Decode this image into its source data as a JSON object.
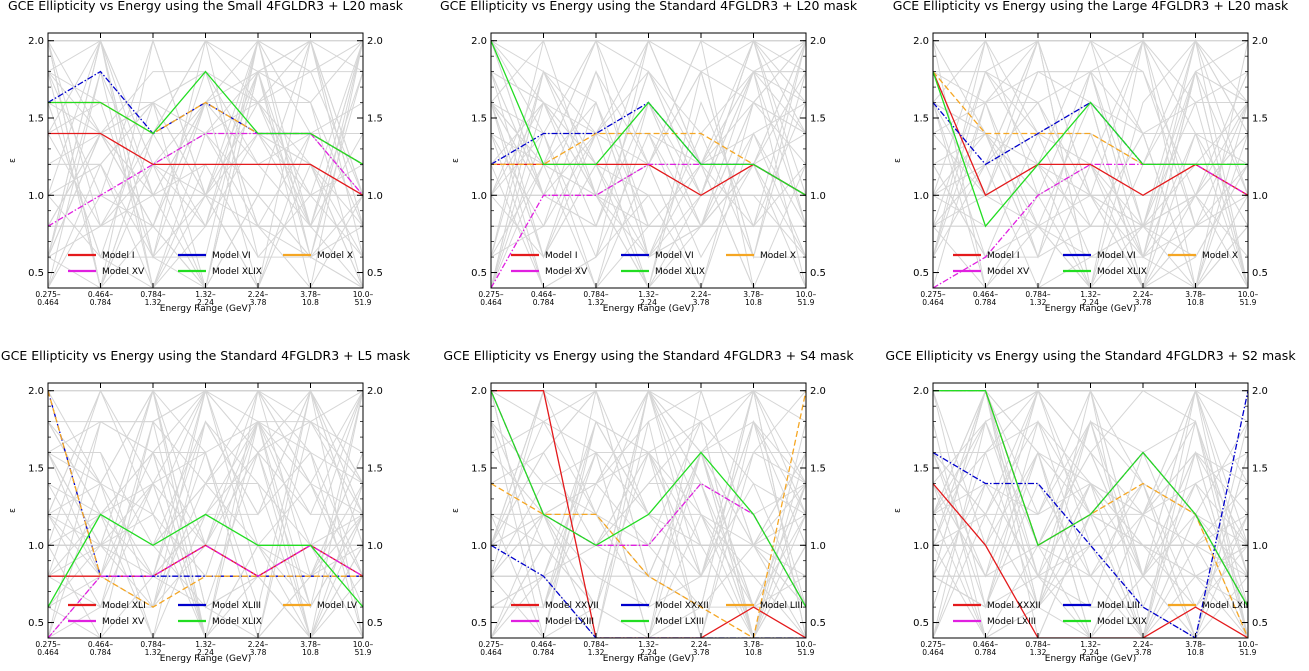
{
  "chart_data": [
    {
      "type": "line",
      "title": "GCE Ellipticity vs Energy using the Small 4FGLDR3 + L20 mask",
      "xlabel": "Energy Range (GeV)",
      "ylabel": "ε",
      "categories": [
        "0.275–0.464",
        "0.464–0.784",
        "0.784–1.32",
        "1.32–2.24",
        "2.24–3.78",
        "3.78–10.8",
        "10.0–51.9"
      ],
      "ylim": [
        0.4,
        2.05
      ],
      "yticks": [
        "0.5",
        "1.0",
        "1.5",
        "2.0"
      ],
      "legend_position": "lower-left",
      "background_lines": "many light gray model lines",
      "series": [
        {
          "name": "Model I",
          "color": "#e41a1c",
          "dash": "solid",
          "values": [
            1.4,
            1.4,
            1.2,
            1.2,
            1.2,
            1.2,
            1.0
          ]
        },
        {
          "name": "Model VI",
          "color": "#0000cc",
          "dash": "dashdot",
          "values": [
            1.6,
            1.8,
            1.4,
            1.6,
            1.4,
            1.4,
            1.2
          ]
        },
        {
          "name": "Model X",
          "color": "#f5a623",
          "dash": "dashed",
          "values": [
            1.6,
            1.6,
            1.4,
            1.6,
            1.4,
            1.4,
            1.2
          ]
        },
        {
          "name": "Model XV",
          "color": "#e020e0",
          "dash": "dashdot",
          "values": [
            0.8,
            1.0,
            1.2,
            1.4,
            1.4,
            1.4,
            1.0
          ]
        },
        {
          "name": "Model XLIX",
          "color": "#22dd22",
          "dash": "solid",
          "values": [
            1.6,
            1.6,
            1.4,
            1.8,
            1.4,
            1.4,
            1.2
          ]
        }
      ]
    },
    {
      "type": "line",
      "title": "GCE Ellipticity vs Energy using the Standard 4FGLDR3 + L20 mask",
      "xlabel": "Energy Range (GeV)",
      "ylabel": "ε",
      "categories": [
        "0.275–0.464",
        "0.464–0.784",
        "0.784–1.32",
        "1.32–2.24",
        "2.24–3.78",
        "3.78–10.8",
        "10.0–51.9"
      ],
      "ylim": [
        0.4,
        2.05
      ],
      "yticks": [
        "0.5",
        "1.0",
        "1.5",
        "2.0"
      ],
      "legend_position": "lower-left",
      "series": [
        {
          "name": "Model I",
          "color": "#e41a1c",
          "dash": "solid",
          "values": [
            1.2,
            1.2,
            1.2,
            1.2,
            1.0,
            1.2,
            1.0
          ]
        },
        {
          "name": "Model VI",
          "color": "#0000cc",
          "dash": "dashdot",
          "values": [
            1.2,
            1.4,
            1.4,
            1.6,
            1.2,
            1.2,
            1.0
          ]
        },
        {
          "name": "Model X",
          "color": "#f5a623",
          "dash": "dashed",
          "values": [
            1.2,
            1.2,
            1.4,
            1.4,
            1.4,
            1.2,
            1.0
          ]
        },
        {
          "name": "Model XV",
          "color": "#e020e0",
          "dash": "dashdot",
          "values": [
            0.4,
            1.0,
            1.0,
            1.2,
            1.2,
            1.2,
            1.0
          ]
        },
        {
          "name": "Model XLIX",
          "color": "#22dd22",
          "dash": "solid",
          "values": [
            2.0,
            1.2,
            1.2,
            1.6,
            1.2,
            1.2,
            1.0
          ]
        }
      ]
    },
    {
      "type": "line",
      "title": "GCE Ellipticity vs Energy using the Large 4FGLDR3 + L20 mask",
      "xlabel": "Energy Range (GeV)",
      "ylabel": "ε",
      "categories": [
        "0.275–0.464",
        "0.464–0.784",
        "0.784–1.32",
        "1.32–2.24",
        "2.24–3.78",
        "3.78–10.8",
        "10.0–51.9"
      ],
      "ylim": [
        0.4,
        2.05
      ],
      "yticks": [
        "0.5",
        "1.0",
        "1.5",
        "2.0"
      ],
      "legend_position": "lower-left",
      "series": [
        {
          "name": "Model I",
          "color": "#e41a1c",
          "dash": "solid",
          "values": [
            1.8,
            1.0,
            1.2,
            1.2,
            1.0,
            1.2,
            1.0
          ]
        },
        {
          "name": "Model VI",
          "color": "#0000cc",
          "dash": "dashdot",
          "values": [
            1.6,
            1.2,
            1.4,
            1.6,
            1.2,
            1.2,
            1.2
          ]
        },
        {
          "name": "Model X",
          "color": "#f5a623",
          "dash": "dashed",
          "values": [
            1.8,
            1.4,
            1.4,
            1.4,
            1.2,
            1.2,
            1.2
          ]
        },
        {
          "name": "Model XV",
          "color": "#e020e0",
          "dash": "dashdot",
          "values": [
            0.4,
            0.6,
            1.0,
            1.2,
            1.2,
            1.2,
            1.0
          ]
        },
        {
          "name": "Model XLIX",
          "color": "#22dd22",
          "dash": "solid",
          "values": [
            1.8,
            0.8,
            1.2,
            1.6,
            1.2,
            1.2,
            1.2
          ]
        }
      ]
    },
    {
      "type": "line",
      "title": "GCE Ellipticity vs Energy using the Standard 4FGLDR3 + L5 mask",
      "xlabel": "Energy Range (GeV)",
      "ylabel": "ε",
      "categories": [
        "0.275–0.464",
        "0.464–0.784",
        "0.784–1.32",
        "1.32–2.24",
        "2.24–3.78",
        "3.78–10.8",
        "10.0–51.9"
      ],
      "ylim": [
        0.4,
        2.05
      ],
      "yticks": [
        "0.5",
        "1.0",
        "1.5",
        "2.0"
      ],
      "legend_position": "lower-left",
      "series": [
        {
          "name": "Model XLI",
          "color": "#e41a1c",
          "dash": "solid",
          "values": [
            0.8,
            0.8,
            0.8,
            1.0,
            0.8,
            1.0,
            0.8
          ]
        },
        {
          "name": "Model XLIII",
          "color": "#0000cc",
          "dash": "dashdot",
          "values": [
            2.0,
            0.8,
            0.8,
            0.8,
            0.8,
            0.8,
            0.8
          ]
        },
        {
          "name": "Model LV",
          "color": "#f5a623",
          "dash": "dashed",
          "values": [
            2.0,
            0.8,
            0.6,
            0.8,
            0.8,
            0.8,
            0.8
          ]
        },
        {
          "name": "Model XV",
          "color": "#e020e0",
          "dash": "dashdot",
          "values": [
            0.4,
            0.8,
            0.8,
            1.0,
            0.8,
            1.0,
            0.8
          ]
        },
        {
          "name": "Model XLIX",
          "color": "#22dd22",
          "dash": "solid",
          "values": [
            0.6,
            1.2,
            1.0,
            1.2,
            1.0,
            1.0,
            0.6
          ]
        }
      ]
    },
    {
      "type": "line",
      "title": "GCE Ellipticity vs Energy using the Standard 4FGLDR3 + S4 mask",
      "xlabel": "Energy Range (GeV)",
      "ylabel": "ε",
      "categories": [
        "0.275–0.464",
        "0.464–0.784",
        "0.784–1.32",
        "1.32–2.24",
        "2.24–3.78",
        "3.78–10.8",
        "10.0–51.9"
      ],
      "ylim": [
        0.4,
        2.05
      ],
      "yticks": [
        "0.5",
        "1.0",
        "1.5",
        "2.0"
      ],
      "legend_position": "lower-left",
      "series": [
        {
          "name": "Model XXVII",
          "color": "#e41a1c",
          "dash": "solid",
          "values": [
            2.0,
            2.0,
            0.4,
            0.4,
            0.4,
            0.6,
            0.4
          ]
        },
        {
          "name": "Model XXXII",
          "color": "#0000cc",
          "dash": "dashdot",
          "values": [
            1.0,
            0.8,
            0.4,
            0.4,
            0.4,
            0.4,
            0.4
          ]
        },
        {
          "name": "Model LIII",
          "color": "#f5a623",
          "dash": "dashed",
          "values": [
            1.4,
            1.2,
            1.2,
            0.8,
            0.6,
            0.4,
            2.0
          ]
        },
        {
          "name": "Model LXIII",
          "color": "#e020e0",
          "dash": "dashdot",
          "values": [
            2.0,
            1.2,
            1.0,
            1.0,
            1.4,
            1.2,
            0.6
          ]
        },
        {
          "name": "Model LXIII",
          "color": "#22dd22",
          "dash": "solid",
          "values": [
            2.0,
            1.2,
            1.0,
            1.2,
            1.6,
            1.2,
            0.6
          ]
        }
      ]
    },
    {
      "type": "line",
      "title": "GCE Ellipticity vs Energy using the Standard 4FGLDR3 + S2 mask",
      "xlabel": "Energy Range (GeV)",
      "ylabel": "ε",
      "categories": [
        "0.275–0.464",
        "0.464–0.784",
        "0.784–1.32",
        "1.32–2.24",
        "2.24–3.78",
        "3.78–10.8",
        "10.0–51.9"
      ],
      "ylim": [
        0.4,
        2.05
      ],
      "yticks": [
        "0.5",
        "1.0",
        "1.5",
        "2.0"
      ],
      "legend_position": "lower-left",
      "series": [
        {
          "name": "Model XXXII",
          "color": "#e41a1c",
          "dash": "solid",
          "values": [
            1.4,
            1.0,
            0.4,
            0.4,
            0.4,
            0.6,
            0.4
          ]
        },
        {
          "name": "Model LIII",
          "color": "#0000cc",
          "dash": "dashdot",
          "values": [
            1.6,
            1.4,
            1.4,
            1.0,
            0.6,
            0.4,
            2.0
          ]
        },
        {
          "name": "Model LXII",
          "color": "#f5a623",
          "dash": "dashed",
          "values": [
            2.0,
            2.0,
            1.0,
            1.2,
            1.4,
            1.2,
            0.4
          ]
        },
        {
          "name": "Model LXIII",
          "color": "#e020e0",
          "dash": "dashdot",
          "values": [
            2.0,
            2.0,
            1.0,
            1.2,
            1.6,
            1.2,
            0.6
          ]
        },
        {
          "name": "Model LXIX",
          "color": "#22dd22",
          "dash": "solid",
          "values": [
            2.0,
            2.0,
            1.0,
            1.2,
            1.6,
            1.2,
            0.6
          ]
        }
      ]
    }
  ]
}
